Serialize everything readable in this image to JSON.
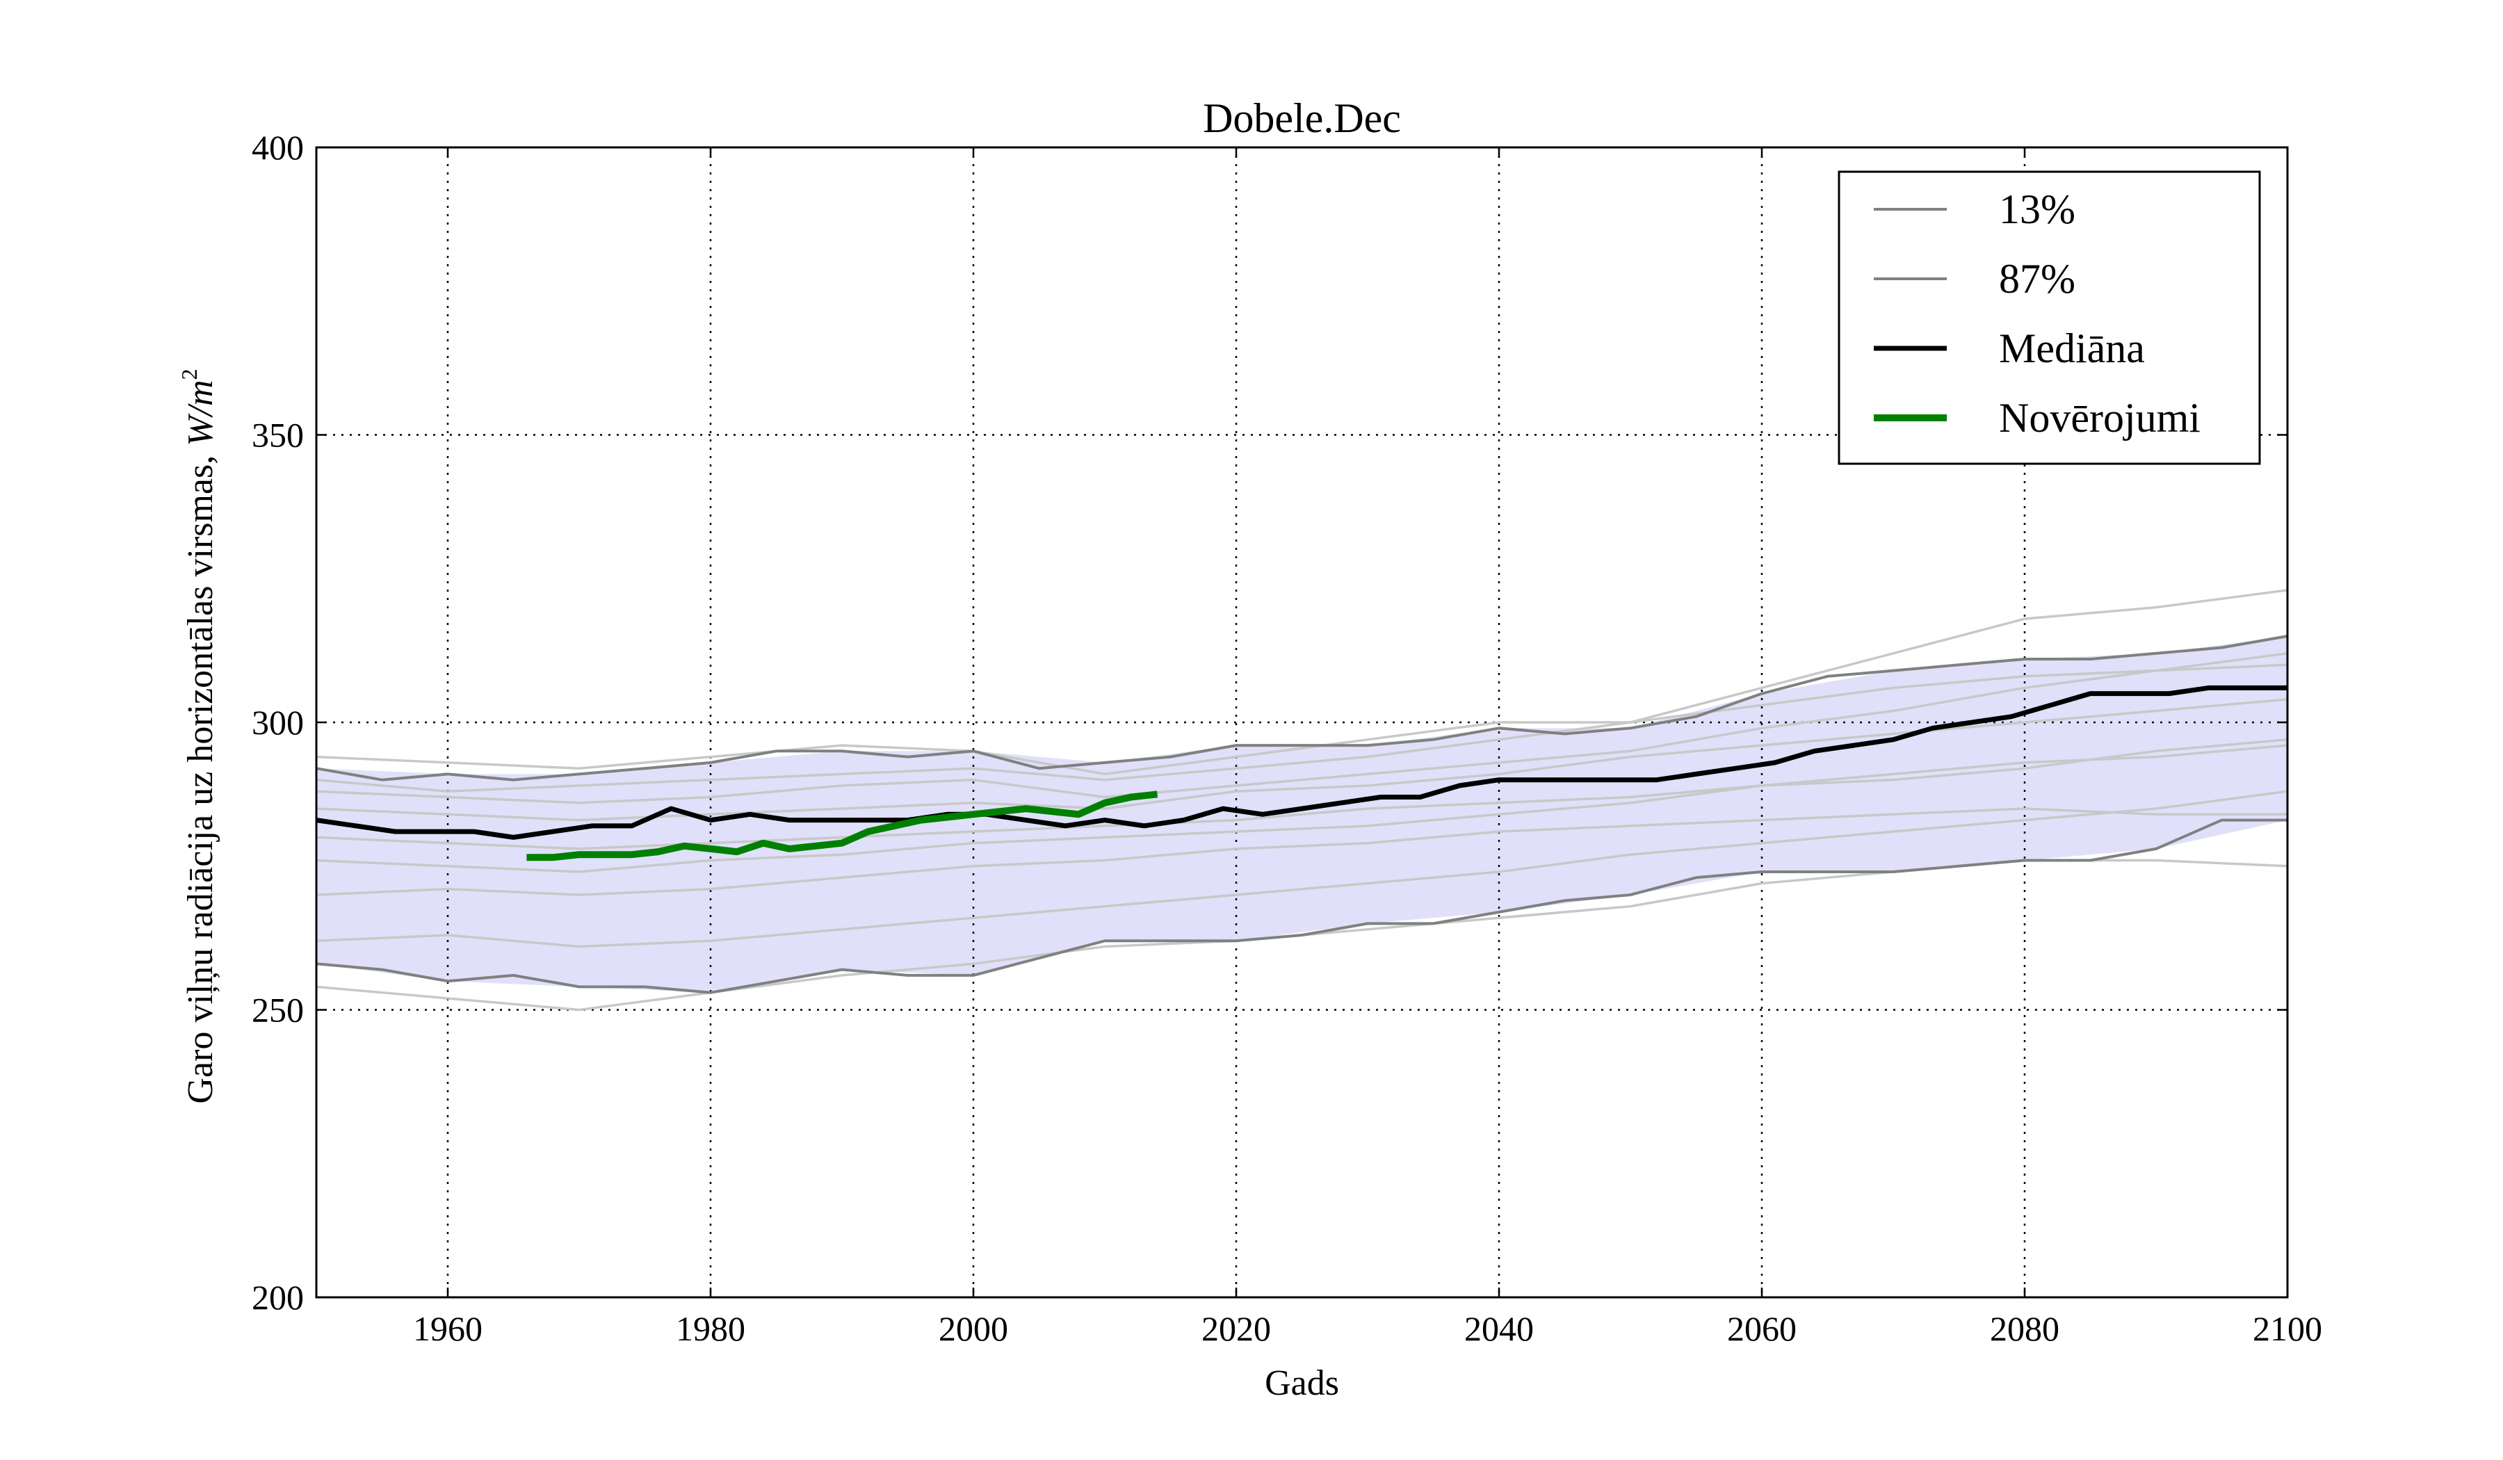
{
  "chart_data": {
    "type": "line",
    "title": "Dobele.Dec",
    "xlabel": "Gads",
    "ylabel": "Garo viļņu radiācija uz horizontālas virsmas, ",
    "ylabel_units": "W/m",
    "ylabel_units_sup": "2",
    "xlim": [
      1950,
      2100
    ],
    "ylim": [
      200,
      400
    ],
    "x_ticks": [
      1960,
      1980,
      2000,
      2020,
      2040,
      2060,
      2080,
      2100
    ],
    "y_ticks": [
      200,
      250,
      300,
      350,
      400
    ],
    "grid": true,
    "legend_position": "top-right",
    "band": {
      "x": [
        1950,
        1960,
        1970,
        1980,
        1990,
        2000,
        2010,
        2020,
        2030,
        2040,
        2050,
        2060,
        2070,
        2080,
        2090,
        2100
      ],
      "lower": [
        258,
        255,
        254,
        253,
        257,
        256,
        262,
        262,
        265,
        267,
        270,
        274,
        274,
        276,
        278,
        283
      ],
      "upper": [
        292,
        291,
        291,
        293,
        295,
        295,
        293,
        296,
        296,
        299,
        299,
        305,
        309,
        311,
        312,
        315
      ]
    },
    "series": [
      {
        "name": "13%",
        "x": [
          1950,
          1955,
          1960,
          1965,
          1970,
          1975,
          1980,
          1985,
          1990,
          1995,
          2000,
          2005,
          2010,
          2015,
          2020,
          2025,
          2030,
          2035,
          2040,
          2045,
          2050,
          2055,
          2060,
          2065,
          2070,
          2075,
          2080,
          2085,
          2090,
          2095,
          2100
        ],
        "y": [
          258,
          257,
          255,
          256,
          254,
          254,
          253,
          255,
          257,
          256,
          256,
          259,
          262,
          262,
          262,
          263,
          265,
          265,
          267,
          269,
          270,
          273,
          274,
          274,
          274,
          275,
          276,
          276,
          278,
          283,
          283
        ]
      },
      {
        "name": "87%",
        "x": [
          1950,
          1955,
          1960,
          1965,
          1970,
          1975,
          1980,
          1985,
          1990,
          1995,
          2000,
          2005,
          2010,
          2015,
          2020,
          2025,
          2030,
          2035,
          2040,
          2045,
          2050,
          2055,
          2060,
          2065,
          2070,
          2075,
          2080,
          2085,
          2090,
          2095,
          2100
        ],
        "y": [
          292,
          290,
          291,
          290,
          291,
          292,
          293,
          295,
          295,
          294,
          295,
          292,
          293,
          294,
          296,
          296,
          296,
          297,
          299,
          298,
          299,
          301,
          305,
          308,
          309,
          310,
          311,
          311,
          312,
          313,
          315
        ]
      },
      {
        "name": "Mediāna",
        "x": [
          1950,
          1953,
          1956,
          1959,
          1962,
          1965,
          1968,
          1971,
          1974,
          1977,
          1980,
          1983,
          1986,
          1989,
          1992,
          1995,
          1998,
          2001,
          2004,
          2007,
          2010,
          2013,
          2016,
          2019,
          2022,
          2025,
          2028,
          2031,
          2034,
          2037,
          2040,
          2043,
          2046,
          2049,
          2052,
          2055,
          2058,
          2061,
          2064,
          2067,
          2070,
          2073,
          2076,
          2079,
          2082,
          2085,
          2088,
          2091,
          2094,
          2097,
          2100
        ],
        "y": [
          283,
          282,
          281,
          281,
          281,
          280,
          281,
          282,
          282,
          285,
          283,
          284,
          283,
          283,
          283,
          283,
          284,
          284,
          283,
          282,
          283,
          282,
          283,
          285,
          284,
          285,
          286,
          287,
          287,
          289,
          290,
          290,
          290,
          290,
          290,
          291,
          292,
          293,
          295,
          296,
          297,
          299,
          300,
          301,
          303,
          305,
          305,
          305,
          306,
          306,
          306
        ]
      },
      {
        "name": "Novērojumi",
        "x": [
          1966,
          1968,
          1970,
          1972,
          1974,
          1976,
          1978,
          1980,
          1982,
          1984,
          1986,
          1988,
          1990,
          1992,
          1994,
          1996,
          1998,
          2000,
          2002,
          2004,
          2006,
          2008,
          2010,
          2012,
          2014
        ],
        "y": [
          276.5,
          276.5,
          277,
          277,
          277,
          277.5,
          278.5,
          278,
          277.5,
          279,
          278,
          278.5,
          279,
          281,
          282,
          283,
          283.5,
          284,
          284.5,
          285,
          284.5,
          284,
          286,
          287,
          287.5
        ]
      }
    ],
    "ensemble_members": [
      {
        "x": [
          1950,
          1960,
          1970,
          1980,
          1990,
          2000,
          2010,
          2020,
          2030,
          2040,
          2050,
          2060,
          2070,
          2080,
          2090,
          2100
        ],
        "y": [
          294,
          293,
          292,
          294,
          296,
          295,
          291,
          294,
          297,
          300,
          300,
          306,
          312,
          318,
          320,
          323
        ]
      },
      {
        "x": [
          1950,
          1960,
          1970,
          1980,
          1990,
          2000,
          2010,
          2020,
          2030,
          2040,
          2050,
          2060,
          2070,
          2080,
          2090,
          2100
        ],
        "y": [
          254,
          252,
          250,
          253,
          256,
          258,
          261,
          262,
          264,
          266,
          268,
          272,
          274,
          276,
          276,
          275
        ]
      },
      {
        "x": [
          1950,
          1960,
          1970,
          1980,
          1990,
          2000,
          2010,
          2020,
          2030,
          2040,
          2050,
          2060,
          2070,
          2080,
          2090,
          2100
        ],
        "y": [
          288,
          287,
          286,
          287,
          289,
          290,
          287,
          289,
          291,
          293,
          295,
          299,
          302,
          306,
          309,
          312
        ]
      },
      {
        "x": [
          1950,
          1960,
          1970,
          1980,
          1990,
          2000,
          2010,
          2020,
          2030,
          2040,
          2050,
          2060,
          2070,
          2080,
          2090,
          2100
        ],
        "y": [
          262,
          263,
          261,
          262,
          264,
          266,
          268,
          270,
          272,
          274,
          277,
          279,
          281,
          283,
          285,
          288
        ]
      },
      {
        "x": [
          1950,
          1960,
          1970,
          1980,
          1990,
          2000,
          2010,
          2020,
          2030,
          2040,
          2050,
          2060,
          2070,
          2080,
          2090,
          2100
        ],
        "y": [
          285,
          284,
          283,
          284,
          285,
          286,
          285,
          288,
          289,
          291,
          294,
          296,
          298,
          300,
          302,
          304
        ]
      },
      {
        "x": [
          1950,
          1960,
          1970,
          1980,
          1990,
          2000,
          2010,
          2020,
          2030,
          2040,
          2050,
          2060,
          2070,
          2080,
          2090,
          2100
        ],
        "y": [
          276,
          275,
          274,
          276,
          277,
          279,
          280,
          281,
          282,
          284,
          286,
          289,
          291,
          293,
          294,
          296
        ]
      },
      {
        "x": [
          1950,
          1960,
          1970,
          1980,
          1990,
          2000,
          2010,
          2020,
          2030,
          2040,
          2050,
          2060,
          2070,
          2080,
          2090,
          2100
        ],
        "y": [
          270,
          271,
          270,
          271,
          273,
          275,
          276,
          278,
          279,
          281,
          282,
          283,
          284,
          285,
          284,
          284
        ]
      },
      {
        "x": [
          1950,
          1960,
          1970,
          1980,
          1990,
          2000,
          2010,
          2020,
          2030,
          2040,
          2050,
          2060,
          2070,
          2080,
          2090,
          2100
        ],
        "y": [
          290,
          288,
          289,
          290,
          291,
          292,
          290,
          292,
          294,
          297,
          300,
          303,
          306,
          308,
          309,
          310
        ]
      },
      {
        "x": [
          1950,
          1960,
          1970,
          1980,
          1990,
          2000,
          2010,
          2020,
          2030,
          2040,
          2050,
          2060,
          2070,
          2080,
          2090,
          2100
        ],
        "y": [
          280,
          279,
          278,
          279,
          280,
          281,
          282,
          283,
          285,
          286,
          287,
          289,
          290,
          292,
          295,
          297
        ]
      }
    ],
    "colors": {
      "band_fill": "#e0e0fa",
      "band_edge": "#808080",
      "ensemble": "#c8c8c8",
      "median": "#000000",
      "observed": "#008000",
      "grid": "#000000",
      "axes": "#000000"
    }
  }
}
